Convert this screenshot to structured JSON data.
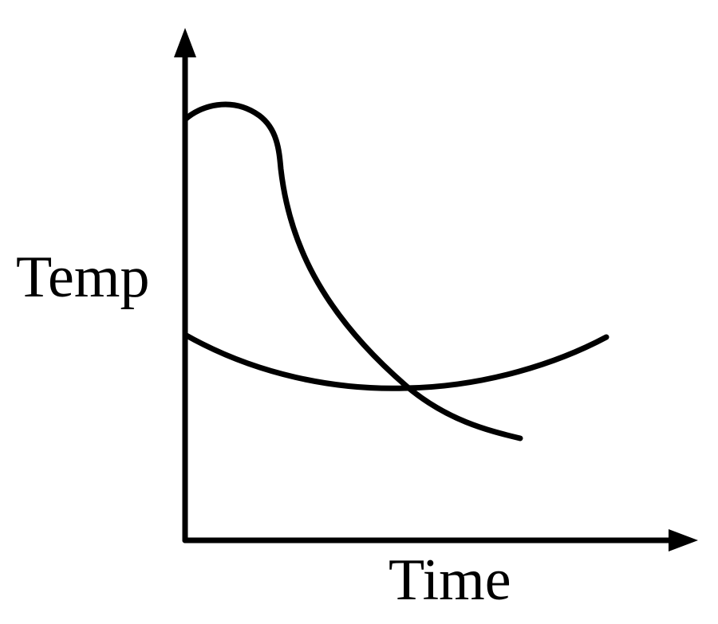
{
  "axes": {
    "y_label": "Temp",
    "x_label": "Time"
  }
}
